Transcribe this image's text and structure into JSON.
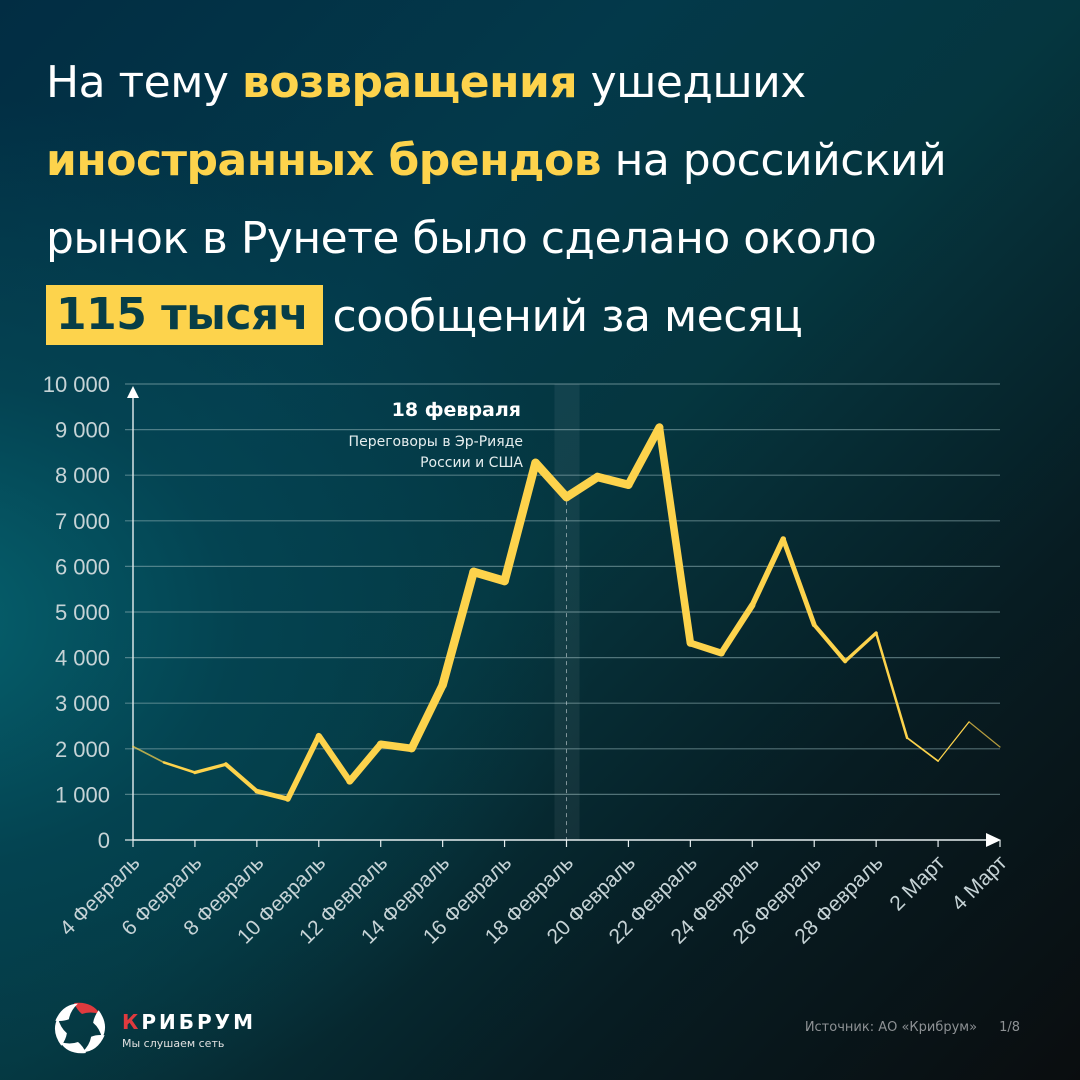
{
  "headline": {
    "line1": {
      "pre": "На тему ",
      "highlight": "возвращения",
      "post": " ушедших"
    },
    "line2": {
      "highlight": "иностранных брендов",
      "post": " на российский"
    },
    "line3": {
      "text": "рынок в Рунете было сделано около"
    },
    "line4": {
      "boxed": "115 тысяч",
      "post": "сообщений за месяц"
    }
  },
  "colors": {
    "accent_yellow": "#fdd34c",
    "boxed_text": "#073e47",
    "line": "#fdd34c",
    "grid": "#8fb0b5",
    "axis": "#e6eeef",
    "brand_red": "#e03a3e"
  },
  "annotation": {
    "title": "18 февраля",
    "line1": "Переговоры в Эр-Рияде",
    "line2": "России и США",
    "date_index": 14
  },
  "chart_data": {
    "type": "line",
    "title": "",
    "xlabel": "",
    "ylabel": "",
    "ylim": [
      0,
      10000
    ],
    "grid": true,
    "legend": null,
    "yticks": [
      "0",
      "1 000",
      "2 000",
      "3 000",
      "4 000",
      "5 000",
      "6 000",
      "7 000",
      "8 000",
      "9 000",
      "10 000"
    ],
    "xtick_labels": [
      "4 Февраль",
      "6 Февраль",
      "8 Февраль",
      "10 Февраль",
      "12 Февраль",
      "14 Февраль",
      "16 Февраль",
      "18 Февраль",
      "20 Февраль",
      "22 Февраль",
      "24 Февраль",
      "26 Февраль",
      "28 Февраль",
      "2 Март",
      "4 Март"
    ],
    "x": [
      "4 Фев",
      "5 Фев",
      "6 Фев",
      "7 Фев",
      "8 Фев",
      "9 Фев",
      "10 Фев",
      "11 Фев",
      "12 Фев",
      "13 Фев",
      "14 Фев",
      "15 Фев",
      "16 Фев",
      "17 Фев",
      "18 Фев",
      "19 Фев",
      "20 Фев",
      "21 Фев",
      "22 Фев",
      "23 Фев",
      "24 Фев",
      "25 Фев",
      "26 Фев",
      "27 Фев",
      "28 Фев",
      "1 Мар",
      "2 Мар",
      "3 Мар",
      "4 Мар"
    ],
    "series": [
      {
        "name": "Сообщения",
        "values": [
          2050,
          1700,
          1480,
          1660,
          1070,
          900,
          2280,
          1290,
          2100,
          2010,
          3400,
          5880,
          5680,
          8270,
          7520,
          7960,
          7790,
          9050,
          4320,
          4100,
          5150,
          6600,
          4720,
          3920,
          4540,
          2240,
          1730,
          2590,
          2040
        ]
      }
    ],
    "annotations": [
      {
        "x": "18 Фев",
        "text": "18 февраля — Переговоры в Эр-Рияде России и США"
      }
    ]
  },
  "footer": {
    "brand_first": "К",
    "brand_rest": "РИБРУМ",
    "tagline": "Мы слушаем сеть",
    "source": "Источник: АО «Крибрум»",
    "page": "1/8"
  }
}
